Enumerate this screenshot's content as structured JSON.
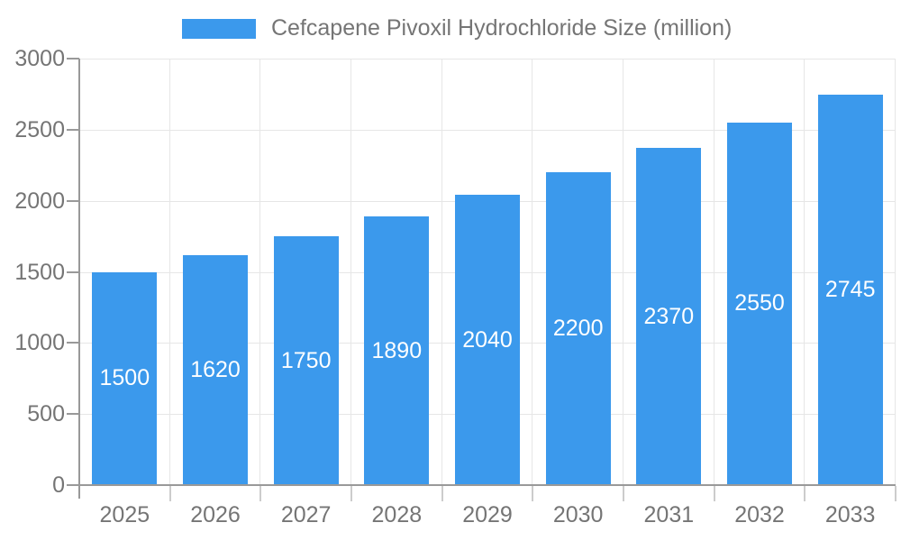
{
  "legend": {
    "label": "Cefcapene Pivoxil Hydrochloride Size (million)"
  },
  "chart_data": {
    "type": "bar",
    "title": "Cefcapene Pivoxil Hydrochloride Size (million)",
    "categories": [
      "2025",
      "2026",
      "2027",
      "2028",
      "2029",
      "2030",
      "2031",
      "2032",
      "2033"
    ],
    "values": [
      1500,
      1620,
      1750,
      1890,
      2040,
      2200,
      2370,
      2550,
      2745
    ],
    "xlabel": "",
    "ylabel": "",
    "ylim": [
      0,
      3000
    ],
    "y_ticks": [
      0,
      500,
      1000,
      1500,
      2000,
      2500,
      3000
    ],
    "grid": true,
    "legend_position": "top-center",
    "value_label_position": "inside-center"
  },
  "style": {
    "bar_color": "#3B99EC",
    "value_label_color": "#ffffff",
    "grid_color": "#e6e6e6",
    "axis_color": "#999999",
    "x_tick_color": "#cccccc",
    "text_color": "#757575",
    "background": "#ffffff"
  }
}
